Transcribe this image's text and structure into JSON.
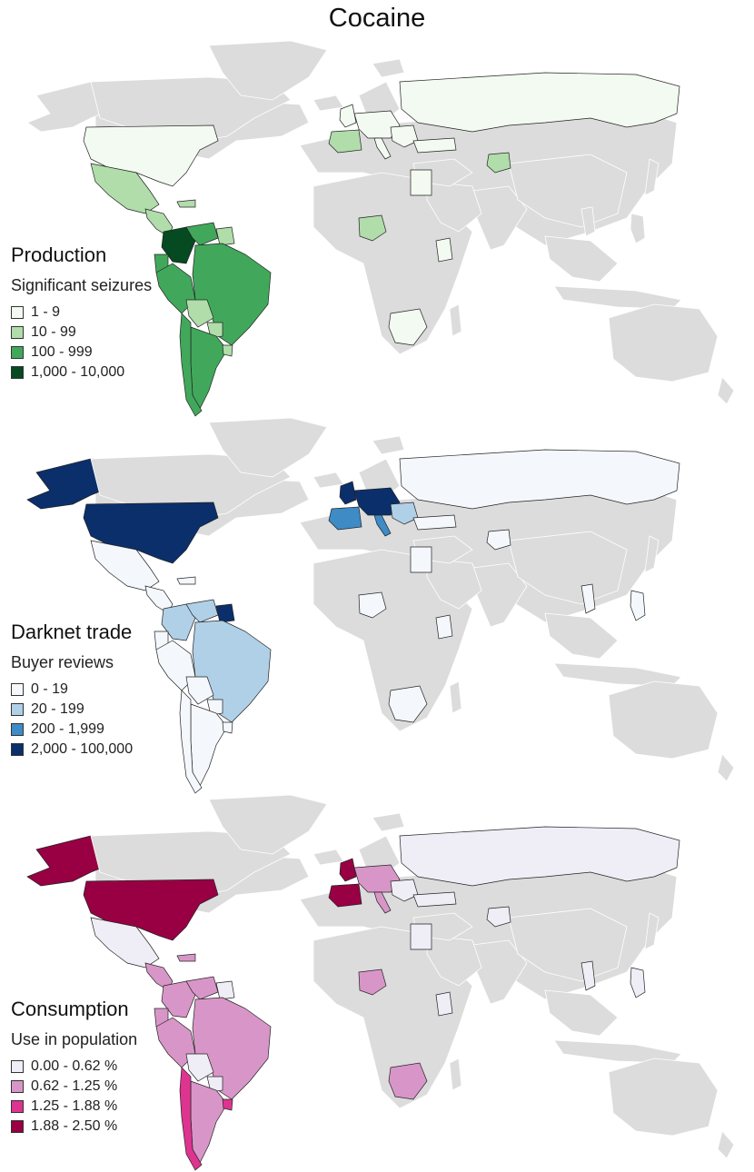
{
  "title": "Cocaine",
  "colors": {
    "land": "#dcdcdc",
    "border": "#222222"
  },
  "panels": [
    {
      "id": "production",
      "title": "Production",
      "subtitle": "Significant seizures",
      "legend": [
        {
          "label": "1 - 9",
          "color": "#f3faf1"
        },
        {
          "label": "10 - 99",
          "color": "#b0ddaa"
        },
        {
          "label": "100 - 999",
          "color": "#41a85b"
        },
        {
          "label": "1,000 - 10,000",
          "color": "#054a20"
        }
      ],
      "regions": {
        "alaska": "land",
        "canada": "land",
        "greenland": "land",
        "usa": "#f3faf1",
        "mexico": "#b0ddaa",
        "central_america": "#b0ddaa",
        "caribbean": "#b0ddaa",
        "colombia": "#054a20",
        "venezuela": "#41a85b",
        "guianas": "#b0ddaa",
        "ecuador": "#41a85b",
        "peru": "#41a85b",
        "brazil": "#41a85b",
        "bolivia": "#b0ddaa",
        "paraguay": "#b0ddaa",
        "argentina": "#41a85b",
        "chile": "#41a85b",
        "uruguay": "#b0ddaa",
        "iberia": "#b0ddaa",
        "uk": "#f3faf1",
        "western_europe": "#f3faf1",
        "italy": "#f3faf1",
        "balkans": "#f3faf1",
        "turkey": "#f3faf1",
        "russia": "#f3faf1",
        "egypt": "#f3faf1",
        "nigeria": "#b0ddaa",
        "kenya": "#f3faf1",
        "south_africa": "#f3faf1",
        "afghanistan": "#b0ddaa",
        "thailand": "land",
        "philippines": "land"
      }
    },
    {
      "id": "darknet",
      "title": "Darknet trade",
      "subtitle": "Buyer reviews",
      "legend": [
        {
          "label": "0 - 19",
          "color": "#f4f8fd"
        },
        {
          "label": "20 - 199",
          "color": "#b0d0e8"
        },
        {
          "label": "200 - 1,999",
          "color": "#3e8bc6"
        },
        {
          "label": "2,000 - 100,000",
          "color": "#0b2f6b"
        }
      ],
      "regions": {
        "alaska": "#0b2f6b",
        "canada": "land",
        "greenland": "land",
        "usa": "#0b2f6b",
        "mexico": "#f4f8fd",
        "central_america": "#f4f8fd",
        "caribbean": "#f4f8fd",
        "colombia": "#b0d0e8",
        "venezuela": "#b0d0e8",
        "guianas": "#0b2f6b",
        "ecuador": "#f4f8fd",
        "peru": "#f4f8fd",
        "brazil": "#b0d0e8",
        "bolivia": "#f4f8fd",
        "paraguay": "#f4f8fd",
        "argentina": "#f4f8fd",
        "chile": "#f4f8fd",
        "uruguay": "#f4f8fd",
        "iberia": "#3e8bc6",
        "uk": "#0b2f6b",
        "western_europe": "#0b2f6b",
        "italy": "#3e8bc6",
        "balkans": "#b0d0e8",
        "turkey": "#f4f8fd",
        "russia": "#f4f8fd",
        "egypt": "#f4f8fd",
        "nigeria": "#f4f8fd",
        "kenya": "#f4f8fd",
        "south_africa": "#f4f8fd",
        "afghanistan": "#f4f8fd",
        "thailand": "#f4f8fd",
        "philippines": "#f4f8fd"
      }
    },
    {
      "id": "consumption",
      "title": "Consumption",
      "subtitle": "Use in population",
      "legend": [
        {
          "label": "0.00 - 0.62 %",
          "color": "#efedf5"
        },
        {
          "label": "0.62 - 1.25 %",
          "color": "#d896c8"
        },
        {
          "label": "1.25 - 1.88 %",
          "color": "#de3490"
        },
        {
          "label": "1.88 - 2.50 %",
          "color": "#980043"
        }
      ],
      "regions": {
        "alaska": "#980043",
        "canada": "land",
        "greenland": "land",
        "usa": "#980043",
        "mexico": "#efedf5",
        "central_america": "#d896c8",
        "caribbean": "#d896c8",
        "colombia": "#d896c8",
        "venezuela": "#d896c8",
        "guianas": "#efedf5",
        "ecuador": "#d896c8",
        "peru": "#d896c8",
        "brazil": "#d896c8",
        "bolivia": "#efedf5",
        "paraguay": "#efedf5",
        "argentina": "#d896c8",
        "chile": "#de3490",
        "uruguay": "#de3490",
        "iberia": "#980043",
        "uk": "#980043",
        "western_europe": "#d896c8",
        "italy": "#d896c8",
        "balkans": "#efedf5",
        "turkey": "#efedf5",
        "russia": "#efedf5",
        "egypt": "#efedf5",
        "nigeria": "#d896c8",
        "kenya": "#efedf5",
        "south_africa": "#d896c8",
        "afghanistan": "#efedf5",
        "thailand": "#efedf5",
        "philippines": "#efedf5"
      }
    }
  ]
}
